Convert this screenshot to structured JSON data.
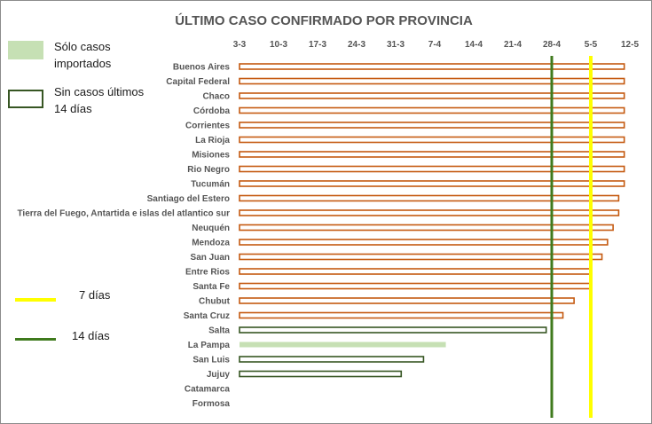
{
  "chart_data": {
    "type": "bar",
    "orientation": "horizontal",
    "title": "ÚLTIMO CASO CONFIRMADO POR PROVINCIA",
    "xlabel": "",
    "ylabel": "",
    "x_unit": "date (day-month, 2020)",
    "xlim": [
      "2020-03-03",
      "2020-05-12"
    ],
    "xticks": [
      "3-3",
      "10-3",
      "17-3",
      "24-3",
      "31-3",
      "7-4",
      "14-4",
      "21-4",
      "28-4",
      "5-5",
      "12-5"
    ],
    "xticks_dates": [
      "2020-03-03",
      "2020-03-10",
      "2020-03-17",
      "2020-03-24",
      "2020-03-31",
      "2020-04-07",
      "2020-04-14",
      "2020-04-21",
      "2020-04-28",
      "2020-05-05",
      "2020-05-12"
    ],
    "grid": false,
    "legend_position": "left",
    "categories": [
      "Buenos Aires",
      "Capital Federal",
      "Chaco",
      "Córdoba",
      "Corrientes",
      "La Rioja",
      "Misiones",
      "Rio Negro",
      "Tucumán",
      "Santiago del Estero",
      "Tierra del Fuego, Antartida e islas del atlantico sur",
      "Neuquén",
      "Mendoza",
      "San Juan",
      "Entre Rios",
      "Santa Fe",
      "Chubut",
      "Santa Cruz",
      "Salta",
      "La Pampa",
      "San Luis",
      "Jujuy",
      "Catamarca",
      "Formosa"
    ],
    "values": [
      "2020-05-11",
      "2020-05-11",
      "2020-05-11",
      "2020-05-11",
      "2020-05-11",
      "2020-05-11",
      "2020-05-11",
      "2020-05-11",
      "2020-05-11",
      "2020-05-10",
      "2020-05-10",
      "2020-05-09",
      "2020-05-08",
      "2020-05-07",
      "2020-05-05",
      "2020-05-05",
      "2020-05-02",
      "2020-04-30",
      "2020-04-27",
      "2020-04-09",
      "2020-04-05",
      "2020-04-01",
      null,
      null
    ],
    "status": [
      "recent",
      "recent",
      "recent",
      "recent",
      "recent",
      "recent",
      "recent",
      "recent",
      "recent",
      "recent",
      "recent",
      "recent",
      "recent",
      "recent",
      "recent",
      "recent",
      "recent",
      "recent",
      "no_cases_14_days",
      "imported_only",
      "no_cases_14_days",
      "no_cases_14_days",
      "none",
      "none"
    ],
    "reference_lines": [
      {
        "label": "7 días",
        "date": "2020-05-05",
        "color": "#ffff00"
      },
      {
        "label": "14 días",
        "date": "2020-04-28",
        "color": "#3f7a1d"
      }
    ],
    "colors": {
      "recent_border": "#c55a11",
      "imported_fill": "#c6e0b4",
      "no_recent_border": "#375623",
      "seven_day_line": "#ffff00",
      "fourteen_day_line": "#3f7a1d"
    }
  },
  "legend": {
    "imported_label": "Sólo casos importados",
    "no_recent_label": "Sin casos últimos 14 días",
    "seven_day_label": "7 días",
    "fourteen_day_label": "14 días"
  }
}
